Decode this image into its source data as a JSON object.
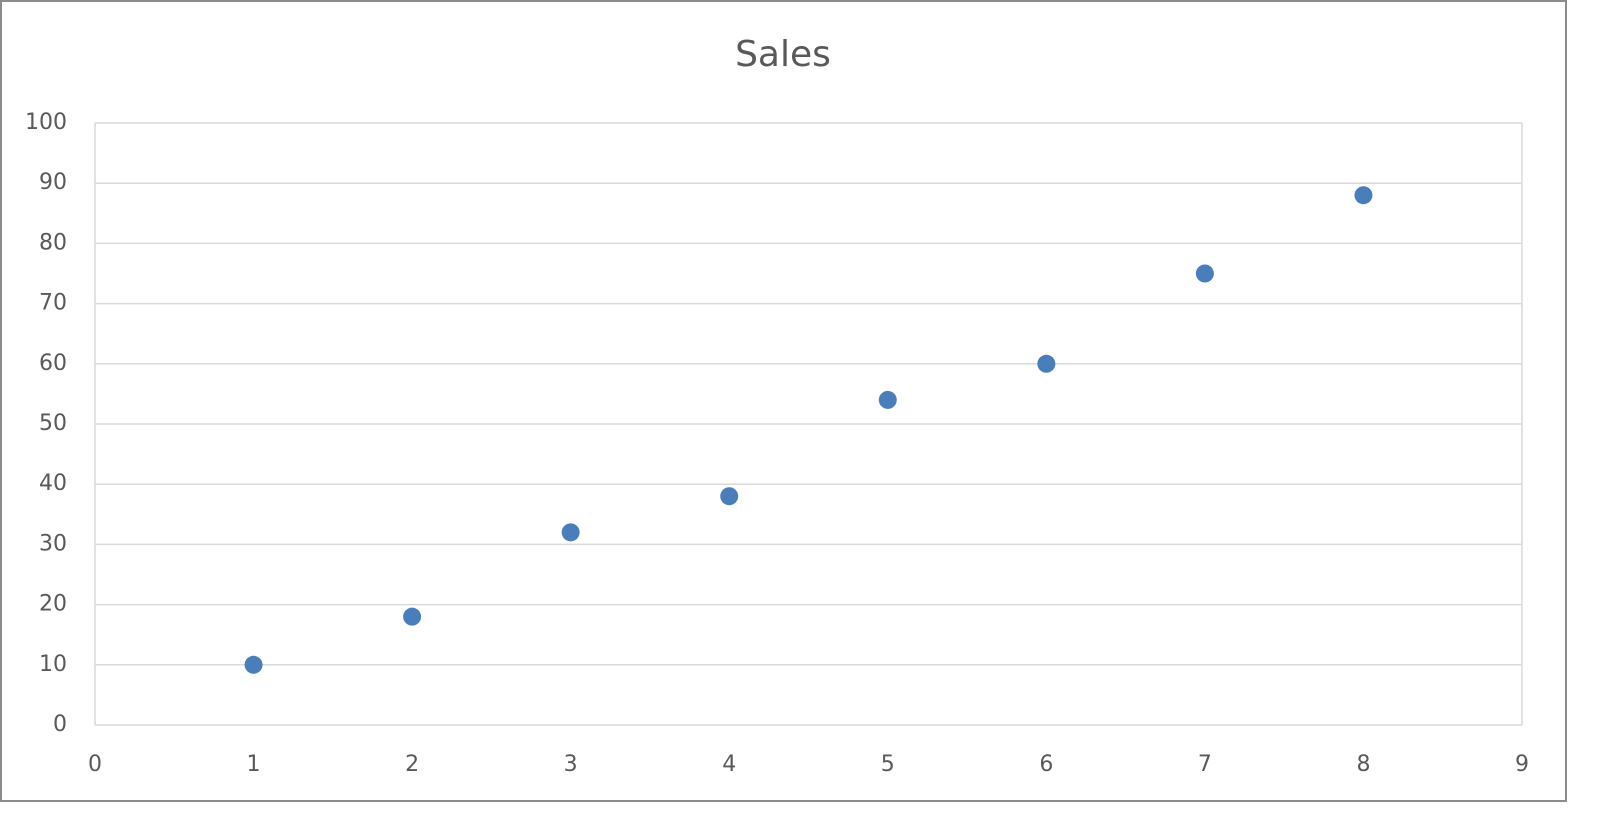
{
  "chart_data": {
    "type": "scatter",
    "title": "Sales",
    "x": [
      1,
      2,
      3,
      4,
      5,
      6,
      7,
      8
    ],
    "series": [
      {
        "color": "#4a7ebb",
        "values": [
          10,
          18,
          32,
          38,
          54,
          60,
          75,
          88
        ]
      }
    ],
    "xlim": [
      0,
      9
    ],
    "xticks": [
      0,
      1,
      2,
      3,
      4,
      5,
      6,
      7,
      8,
      9
    ],
    "ylim": [
      0,
      100
    ],
    "yticks": [
      0,
      10,
      20,
      30,
      40,
      50,
      60,
      70,
      80,
      90,
      100
    ],
    "grid": true
  }
}
